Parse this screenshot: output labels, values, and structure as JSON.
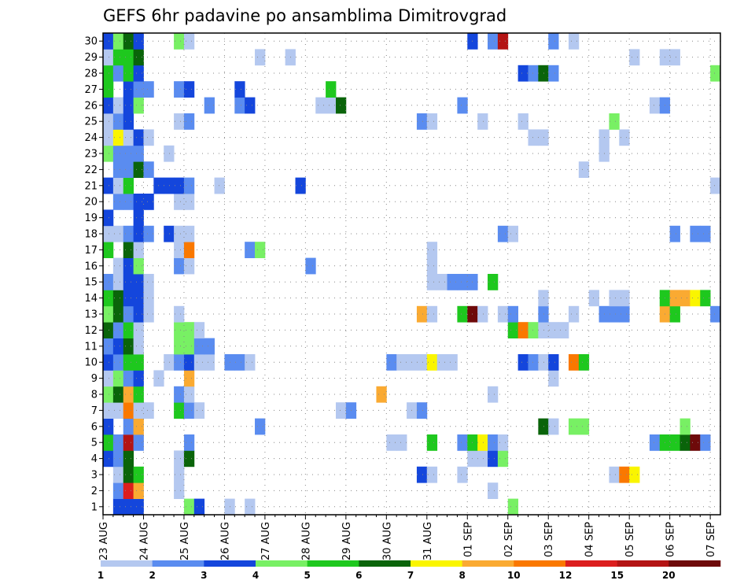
{
  "chart_data": {
    "type": "heatmap",
    "title": "GEFS 6hr padavine po ansamblima Dimitrovgrad",
    "xlabel": "",
    "ylabel": "",
    "x_ticks": [
      "23 AUG",
      "24 AUG",
      "25 AUG",
      "26 AUG",
      "27 AUG",
      "28 AUG",
      "29 AUG",
      "30 AUG",
      "31 AUG",
      "01 SEP",
      "02 SEP",
      "03 SEP",
      "04 SEP",
      "05 SEP",
      "06 SEP",
      "07 SEP"
    ],
    "y_ticks": [
      1,
      2,
      3,
      4,
      5,
      6,
      7,
      8,
      9,
      10,
      11,
      12,
      13,
      14,
      15,
      16,
      17,
      18,
      19,
      20,
      21,
      22,
      23,
      24,
      25,
      26,
      27,
      28,
      29,
      30
    ],
    "grid": true,
    "time_steps": 61,
    "members": 30,
    "legend": {
      "placement": "bottom",
      "levels": [
        1,
        2,
        3,
        4,
        5,
        6,
        7,
        8,
        10,
        12,
        15,
        20
      ],
      "colors": [
        "#b4c8f0",
        "#5a8cf0",
        "#1446dc",
        "#78f064",
        "#1ec81e",
        "#0a640a",
        "#faf500",
        "#faaa32",
        "#fa7800",
        "#dc1e1e",
        "#b41414",
        "#6e0a0a"
      ]
    },
    "cells": [
      [
        1,
        1,
        3
      ],
      [
        1,
        2,
        3
      ],
      [
        1,
        3,
        3
      ],
      [
        1,
        8,
        4
      ],
      [
        1,
        9,
        3
      ],
      [
        1,
        12,
        1
      ],
      [
        1,
        14,
        1
      ],
      [
        1,
        40,
        4
      ],
      [
        2,
        1,
        2
      ],
      [
        2,
        2,
        10
      ],
      [
        2,
        3,
        8
      ],
      [
        2,
        7,
        1
      ],
      [
        2,
        38,
        1
      ],
      [
        3,
        1,
        1
      ],
      [
        3,
        2,
        6
      ],
      [
        3,
        3,
        5
      ],
      [
        3,
        7,
        1
      ],
      [
        3,
        31,
        3
      ],
      [
        3,
        32,
        1
      ],
      [
        3,
        35,
        1
      ],
      [
        3,
        50,
        1
      ],
      [
        3,
        51,
        9
      ],
      [
        3,
        52,
        7
      ],
      [
        4,
        0,
        3
      ],
      [
        4,
        1,
        2
      ],
      [
        4,
        2,
        6
      ],
      [
        4,
        7,
        1
      ],
      [
        4,
        8,
        6
      ],
      [
        4,
        36,
        1
      ],
      [
        4,
        37,
        1
      ],
      [
        4,
        38,
        3
      ],
      [
        4,
        39,
        4
      ],
      [
        5,
        0,
        5
      ],
      [
        5,
        1,
        2
      ],
      [
        5,
        2,
        11
      ],
      [
        5,
        3,
        2
      ],
      [
        5,
        8,
        2
      ],
      [
        5,
        28,
        1
      ],
      [
        5,
        29,
        1
      ],
      [
        5,
        32,
        5
      ],
      [
        5,
        35,
        2
      ],
      [
        5,
        36,
        5
      ],
      [
        5,
        37,
        7
      ],
      [
        5,
        38,
        2
      ],
      [
        5,
        39,
        1
      ],
      [
        5,
        54,
        2
      ],
      [
        5,
        55,
        5
      ],
      [
        5,
        56,
        5
      ],
      [
        5,
        57,
        6
      ],
      [
        5,
        58,
        12
      ],
      [
        5,
        59,
        2
      ],
      [
        6,
        0,
        3
      ],
      [
        6,
        2,
        2
      ],
      [
        6,
        3,
        8
      ],
      [
        6,
        15,
        2
      ],
      [
        6,
        43,
        6
      ],
      [
        6,
        44,
        1
      ],
      [
        6,
        46,
        4
      ],
      [
        6,
        47,
        4
      ],
      [
        6,
        57,
        4
      ],
      [
        7,
        0,
        1
      ],
      [
        7,
        1,
        1
      ],
      [
        7,
        2,
        9
      ],
      [
        7,
        3,
        1
      ],
      [
        7,
        4,
        1
      ],
      [
        7,
        7,
        5
      ],
      [
        7,
        8,
        2
      ],
      [
        7,
        9,
        1
      ],
      [
        7,
        23,
        1
      ],
      [
        7,
        24,
        2
      ],
      [
        7,
        30,
        1
      ],
      [
        7,
        31,
        2
      ],
      [
        8,
        0,
        4
      ],
      [
        8,
        1,
        6
      ],
      [
        8,
        2,
        8
      ],
      [
        8,
        3,
        5
      ],
      [
        8,
        7,
        2
      ],
      [
        8,
        8,
        1
      ],
      [
        8,
        27,
        8
      ],
      [
        8,
        38,
        1
      ],
      [
        9,
        0,
        1
      ],
      [
        9,
        1,
        4
      ],
      [
        9,
        2,
        2
      ],
      [
        9,
        3,
        3
      ],
      [
        9,
        5,
        1
      ],
      [
        9,
        8,
        8
      ],
      [
        9,
        44,
        1
      ],
      [
        10,
        0,
        3
      ],
      [
        10,
        1,
        2
      ],
      [
        10,
        2,
        5
      ],
      [
        10,
        3,
        5
      ],
      [
        10,
        6,
        1
      ],
      [
        10,
        7,
        2
      ],
      [
        10,
        8,
        3
      ],
      [
        10,
        9,
        1
      ],
      [
        10,
        10,
        1
      ],
      [
        10,
        12,
        2
      ],
      [
        10,
        13,
        2
      ],
      [
        10,
        14,
        1
      ],
      [
        10,
        28,
        2
      ],
      [
        10,
        29,
        1
      ],
      [
        10,
        30,
        1
      ],
      [
        10,
        31,
        1
      ],
      [
        10,
        32,
        7
      ],
      [
        10,
        33,
        1
      ],
      [
        10,
        34,
        1
      ],
      [
        10,
        41,
        3
      ],
      [
        10,
        42,
        2
      ],
      [
        10,
        43,
        1
      ],
      [
        10,
        44,
        3
      ],
      [
        10,
        46,
        9
      ],
      [
        10,
        47,
        5
      ],
      [
        11,
        0,
        2
      ],
      [
        11,
        1,
        3
      ],
      [
        11,
        2,
        6
      ],
      [
        11,
        3,
        1
      ],
      [
        11,
        7,
        4
      ],
      [
        11,
        8,
        4
      ],
      [
        11,
        9,
        2
      ],
      [
        11,
        10,
        2
      ],
      [
        12,
        0,
        6
      ],
      [
        12,
        1,
        2
      ],
      [
        12,
        2,
        5
      ],
      [
        12,
        3,
        1
      ],
      [
        12,
        7,
        4
      ],
      [
        12,
        8,
        4
      ],
      [
        12,
        9,
        1
      ],
      [
        12,
        40,
        5
      ],
      [
        12,
        41,
        9
      ],
      [
        12,
        42,
        4
      ],
      [
        12,
        43,
        1
      ],
      [
        12,
        44,
        1
      ],
      [
        12,
        45,
        1
      ],
      [
        13,
        0,
        4
      ],
      [
        13,
        1,
        6
      ],
      [
        13,
        2,
        2
      ],
      [
        13,
        3,
        3
      ],
      [
        13,
        4,
        1
      ],
      [
        13,
        7,
        1
      ],
      [
        13,
        31,
        8
      ],
      [
        13,
        32,
        1
      ],
      [
        13,
        35,
        5
      ],
      [
        13,
        36,
        12
      ],
      [
        13,
        37,
        1
      ],
      [
        13,
        39,
        1
      ],
      [
        13,
        40,
        2
      ],
      [
        13,
        43,
        2
      ],
      [
        13,
        46,
        1
      ],
      [
        13,
        49,
        2
      ],
      [
        13,
        50,
        2
      ],
      [
        13,
        51,
        2
      ],
      [
        13,
        55,
        8
      ],
      [
        13,
        56,
        5
      ],
      [
        13,
        60,
        2
      ],
      [
        14,
        0,
        5
      ],
      [
        14,
        1,
        6
      ],
      [
        14,
        2,
        3
      ],
      [
        14,
        3,
        3
      ],
      [
        14,
        4,
        1
      ],
      [
        14,
        43,
        1
      ],
      [
        14,
        48,
        1
      ],
      [
        14,
        50,
        1
      ],
      [
        14,
        51,
        1
      ],
      [
        14,
        55,
        5
      ],
      [
        14,
        56,
        8
      ],
      [
        14,
        57,
        8
      ],
      [
        14,
        58,
        7
      ],
      [
        14,
        59,
        5
      ],
      [
        15,
        0,
        2
      ],
      [
        15,
        1,
        1
      ],
      [
        15,
        2,
        3
      ],
      [
        15,
        3,
        3
      ],
      [
        15,
        4,
        1
      ],
      [
        15,
        32,
        1
      ],
      [
        15,
        33,
        1
      ],
      [
        15,
        34,
        2
      ],
      [
        15,
        35,
        2
      ],
      [
        15,
        36,
        2
      ],
      [
        15,
        38,
        5
      ],
      [
        16,
        1,
        1
      ],
      [
        16,
        2,
        3
      ],
      [
        16,
        3,
        4
      ],
      [
        16,
        7,
        2
      ],
      [
        16,
        8,
        1
      ],
      [
        16,
        20,
        2
      ],
      [
        16,
        32,
        1
      ],
      [
        17,
        0,
        5
      ],
      [
        17,
        2,
        6
      ],
      [
        17,
        3,
        1
      ],
      [
        17,
        7,
        1
      ],
      [
        17,
        8,
        9
      ],
      [
        17,
        14,
        2
      ],
      [
        17,
        15,
        4
      ],
      [
        17,
        32,
        1
      ],
      [
        18,
        0,
        1
      ],
      [
        18,
        1,
        1
      ],
      [
        18,
        2,
        2
      ],
      [
        18,
        3,
        3
      ],
      [
        18,
        4,
        2
      ],
      [
        18,
        6,
        3
      ],
      [
        18,
        7,
        1
      ],
      [
        18,
        8,
        1
      ],
      [
        18,
        39,
        2
      ],
      [
        18,
        40,
        1
      ],
      [
        18,
        56,
        2
      ],
      [
        18,
        58,
        2
      ],
      [
        18,
        59,
        2
      ],
      [
        19,
        0,
        3
      ],
      [
        19,
        3,
        3
      ],
      [
        20,
        1,
        2
      ],
      [
        20,
        2,
        2
      ],
      [
        20,
        3,
        3
      ],
      [
        20,
        4,
        3
      ],
      [
        20,
        7,
        1
      ],
      [
        20,
        8,
        1
      ],
      [
        21,
        0,
        3
      ],
      [
        21,
        1,
        1
      ],
      [
        21,
        2,
        5
      ],
      [
        21,
        5,
        3
      ],
      [
        21,
        6,
        3
      ],
      [
        21,
        7,
        3
      ],
      [
        21,
        8,
        2
      ],
      [
        21,
        11,
        1
      ],
      [
        21,
        19,
        3
      ],
      [
        21,
        60,
        1
      ],
      [
        22,
        1,
        2
      ],
      [
        22,
        2,
        2
      ],
      [
        22,
        3,
        6
      ],
      [
        22,
        4,
        2
      ],
      [
        22,
        47,
        1
      ],
      [
        23,
        0,
        4
      ],
      [
        23,
        1,
        2
      ],
      [
        23,
        2,
        2
      ],
      [
        23,
        3,
        2
      ],
      [
        23,
        6,
        1
      ],
      [
        23,
        49,
        1
      ],
      [
        24,
        0,
        1
      ],
      [
        24,
        1,
        7
      ],
      [
        24,
        2,
        1
      ],
      [
        24,
        3,
        3
      ],
      [
        24,
        4,
        1
      ],
      [
        24,
        42,
        1
      ],
      [
        24,
        43,
        1
      ],
      [
        24,
        49,
        1
      ],
      [
        24,
        51,
        1
      ],
      [
        25,
        0,
        1
      ],
      [
        25,
        1,
        2
      ],
      [
        25,
        2,
        3
      ],
      [
        25,
        7,
        1
      ],
      [
        25,
        8,
        2
      ],
      [
        25,
        31,
        2
      ],
      [
        25,
        32,
        1
      ],
      [
        25,
        37,
        1
      ],
      [
        25,
        41,
        1
      ],
      [
        25,
        50,
        4
      ],
      [
        26,
        0,
        3
      ],
      [
        26,
        1,
        1
      ],
      [
        26,
        2,
        3
      ],
      [
        26,
        3,
        4
      ],
      [
        26,
        10,
        2
      ],
      [
        26,
        13,
        2
      ],
      [
        26,
        14,
        3
      ],
      [
        26,
        21,
        1
      ],
      [
        26,
        22,
        1
      ],
      [
        26,
        23,
        6
      ],
      [
        26,
        35,
        2
      ],
      [
        26,
        54,
        1
      ],
      [
        26,
        55,
        2
      ],
      [
        27,
        0,
        5
      ],
      [
        27,
        2,
        3
      ],
      [
        27,
        3,
        2
      ],
      [
        27,
        4,
        2
      ],
      [
        27,
        7,
        2
      ],
      [
        27,
        8,
        3
      ],
      [
        27,
        13,
        3
      ],
      [
        27,
        22,
        5
      ],
      [
        28,
        0,
        5
      ],
      [
        28,
        1,
        2
      ],
      [
        28,
        2,
        5
      ],
      [
        28,
        3,
        3
      ],
      [
        28,
        41,
        3
      ],
      [
        28,
        42,
        2
      ],
      [
        28,
        43,
        6
      ],
      [
        28,
        44,
        2
      ],
      [
        28,
        60,
        4
      ],
      [
        29,
        0,
        1
      ],
      [
        29,
        1,
        5
      ],
      [
        29,
        2,
        5
      ],
      [
        29,
        3,
        6
      ],
      [
        29,
        15,
        1
      ],
      [
        29,
        18,
        1
      ],
      [
        29,
        52,
        1
      ],
      [
        29,
        55,
        1
      ],
      [
        29,
        56,
        1
      ],
      [
        30,
        0,
        3
      ],
      [
        30,
        1,
        4
      ],
      [
        30,
        2,
        6
      ],
      [
        30,
        3,
        3
      ],
      [
        30,
        7,
        4
      ],
      [
        30,
        8,
        1
      ],
      [
        30,
        36,
        3
      ],
      [
        30,
        38,
        2
      ],
      [
        30,
        39,
        11
      ],
      [
        30,
        44,
        2
      ],
      [
        30,
        46,
        1
      ]
    ]
  }
}
